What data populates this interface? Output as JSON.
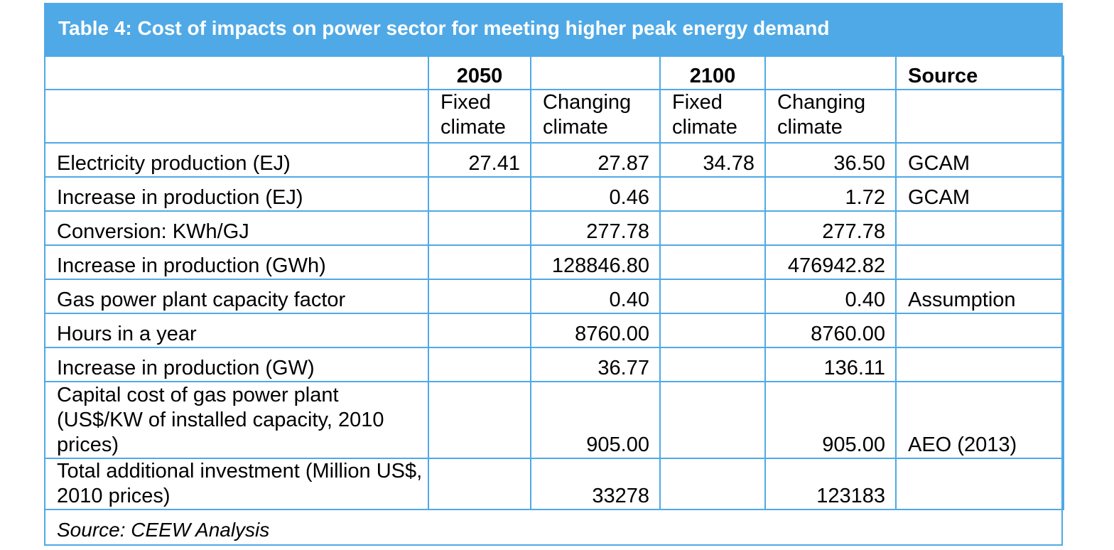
{
  "title": "Table 4: Cost of impacts on power sector for meeting higher peak energy demand",
  "header": {
    "year_2050": "2050",
    "year_2100": "2100",
    "source": "Source",
    "fixed_2050": "Fixed climate",
    "changing_2050": "Changing climate",
    "fixed_2100": "Fixed climate",
    "changing_2100": "Changing climate"
  },
  "rows": [
    {
      "label": "Electricity production (EJ)",
      "f2050": "27.41",
      "c2050": "27.87",
      "f2100": "34.78",
      "c2100": "36.50",
      "source": "GCAM"
    },
    {
      "label": "Increase in production (EJ)",
      "f2050": "",
      "c2050": "0.46",
      "f2100": "",
      "c2100": "1.72",
      "source": "GCAM"
    },
    {
      "label": "Conversion: KWh/GJ",
      "f2050": "",
      "c2050": "277.78",
      "f2100": "",
      "c2100": "277.78",
      "source": ""
    },
    {
      "label": "Increase in production (GWh)",
      "f2050": "",
      "c2050": "128846.80",
      "f2100": "",
      "c2100": "476942.82",
      "source": ""
    },
    {
      "label": "Gas power plant capacity factor",
      "f2050": "",
      "c2050": "0.40",
      "f2100": "",
      "c2100": "0.40",
      "source": "Assumption"
    },
    {
      "label": "Hours in a year",
      "f2050": "",
      "c2050": "8760.00",
      "f2100": "",
      "c2100": "8760.00",
      "source": ""
    },
    {
      "label": "Increase in production (GW)",
      "f2050": "",
      "c2050": "36.77",
      "f2100": "",
      "c2100": "136.11",
      "source": ""
    },
    {
      "label": "Capital cost of gas power plant (US$/KW of installed capacity, 2010 prices)",
      "f2050": "",
      "c2050": "905.00",
      "f2100": "",
      "c2100": "905.00",
      "source": "AEO (2013)"
    },
    {
      "label": "Total additional investment (Million US$, 2010 prices)",
      "f2050": "",
      "c2050": "33278",
      "f2100": "",
      "c2100": "123183",
      "source": ""
    }
  ],
  "footer": "Source: CEEW Analysis"
}
